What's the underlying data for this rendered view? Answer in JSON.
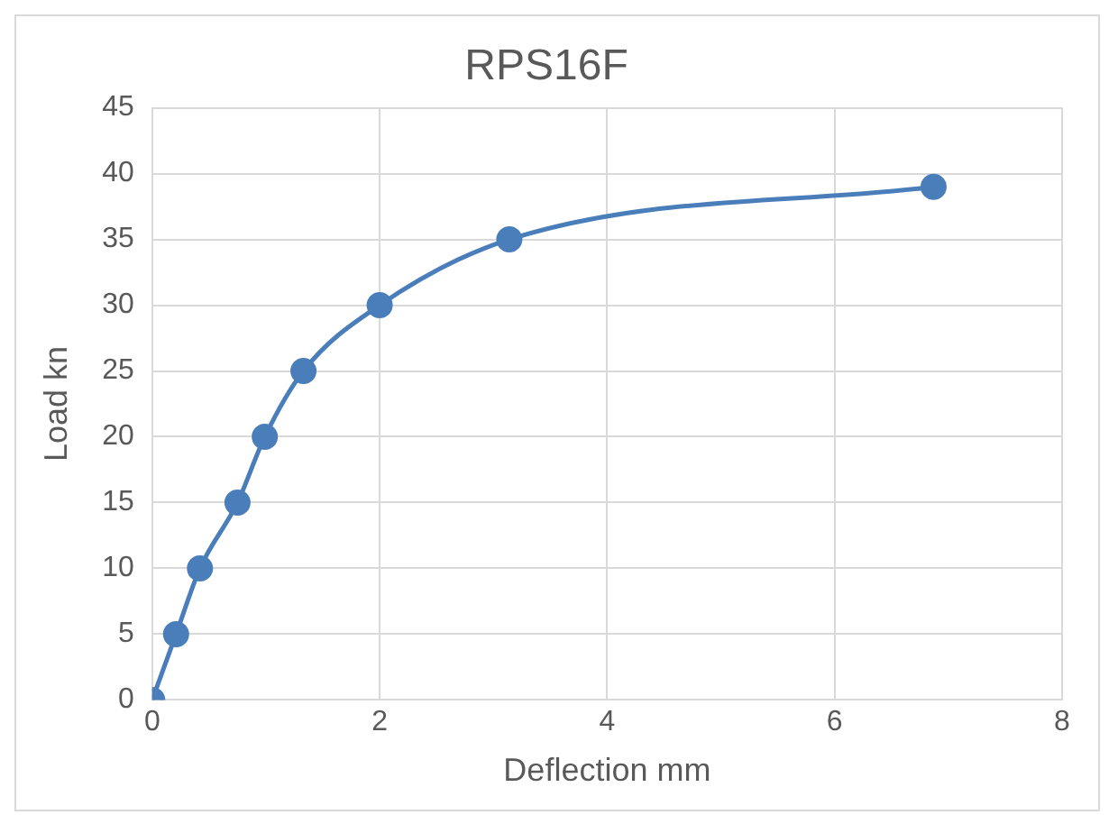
{
  "chart_data": {
    "type": "line",
    "title": "RPS16F",
    "xlabel": "Deflection mm",
    "ylabel": "Load kn",
    "x": [
      0,
      0.21,
      0.42,
      0.75,
      0.99,
      1.33,
      2,
      3.14,
      6.87
    ],
    "series": [
      {
        "color": "#4a7ebb",
        "values": [
          0,
          5,
          10,
          15,
          20,
          25,
          30,
          35,
          39
        ]
      }
    ],
    "xlim": [
      0,
      8
    ],
    "xticks": [
      0,
      2,
      4,
      6,
      8
    ],
    "ylim": [
      0,
      45
    ],
    "yticks": [
      0,
      5,
      10,
      15,
      20,
      25,
      30,
      35,
      40,
      45
    ],
    "grid": true,
    "legend": false,
    "marker": "circle",
    "line_style": "solid"
  }
}
